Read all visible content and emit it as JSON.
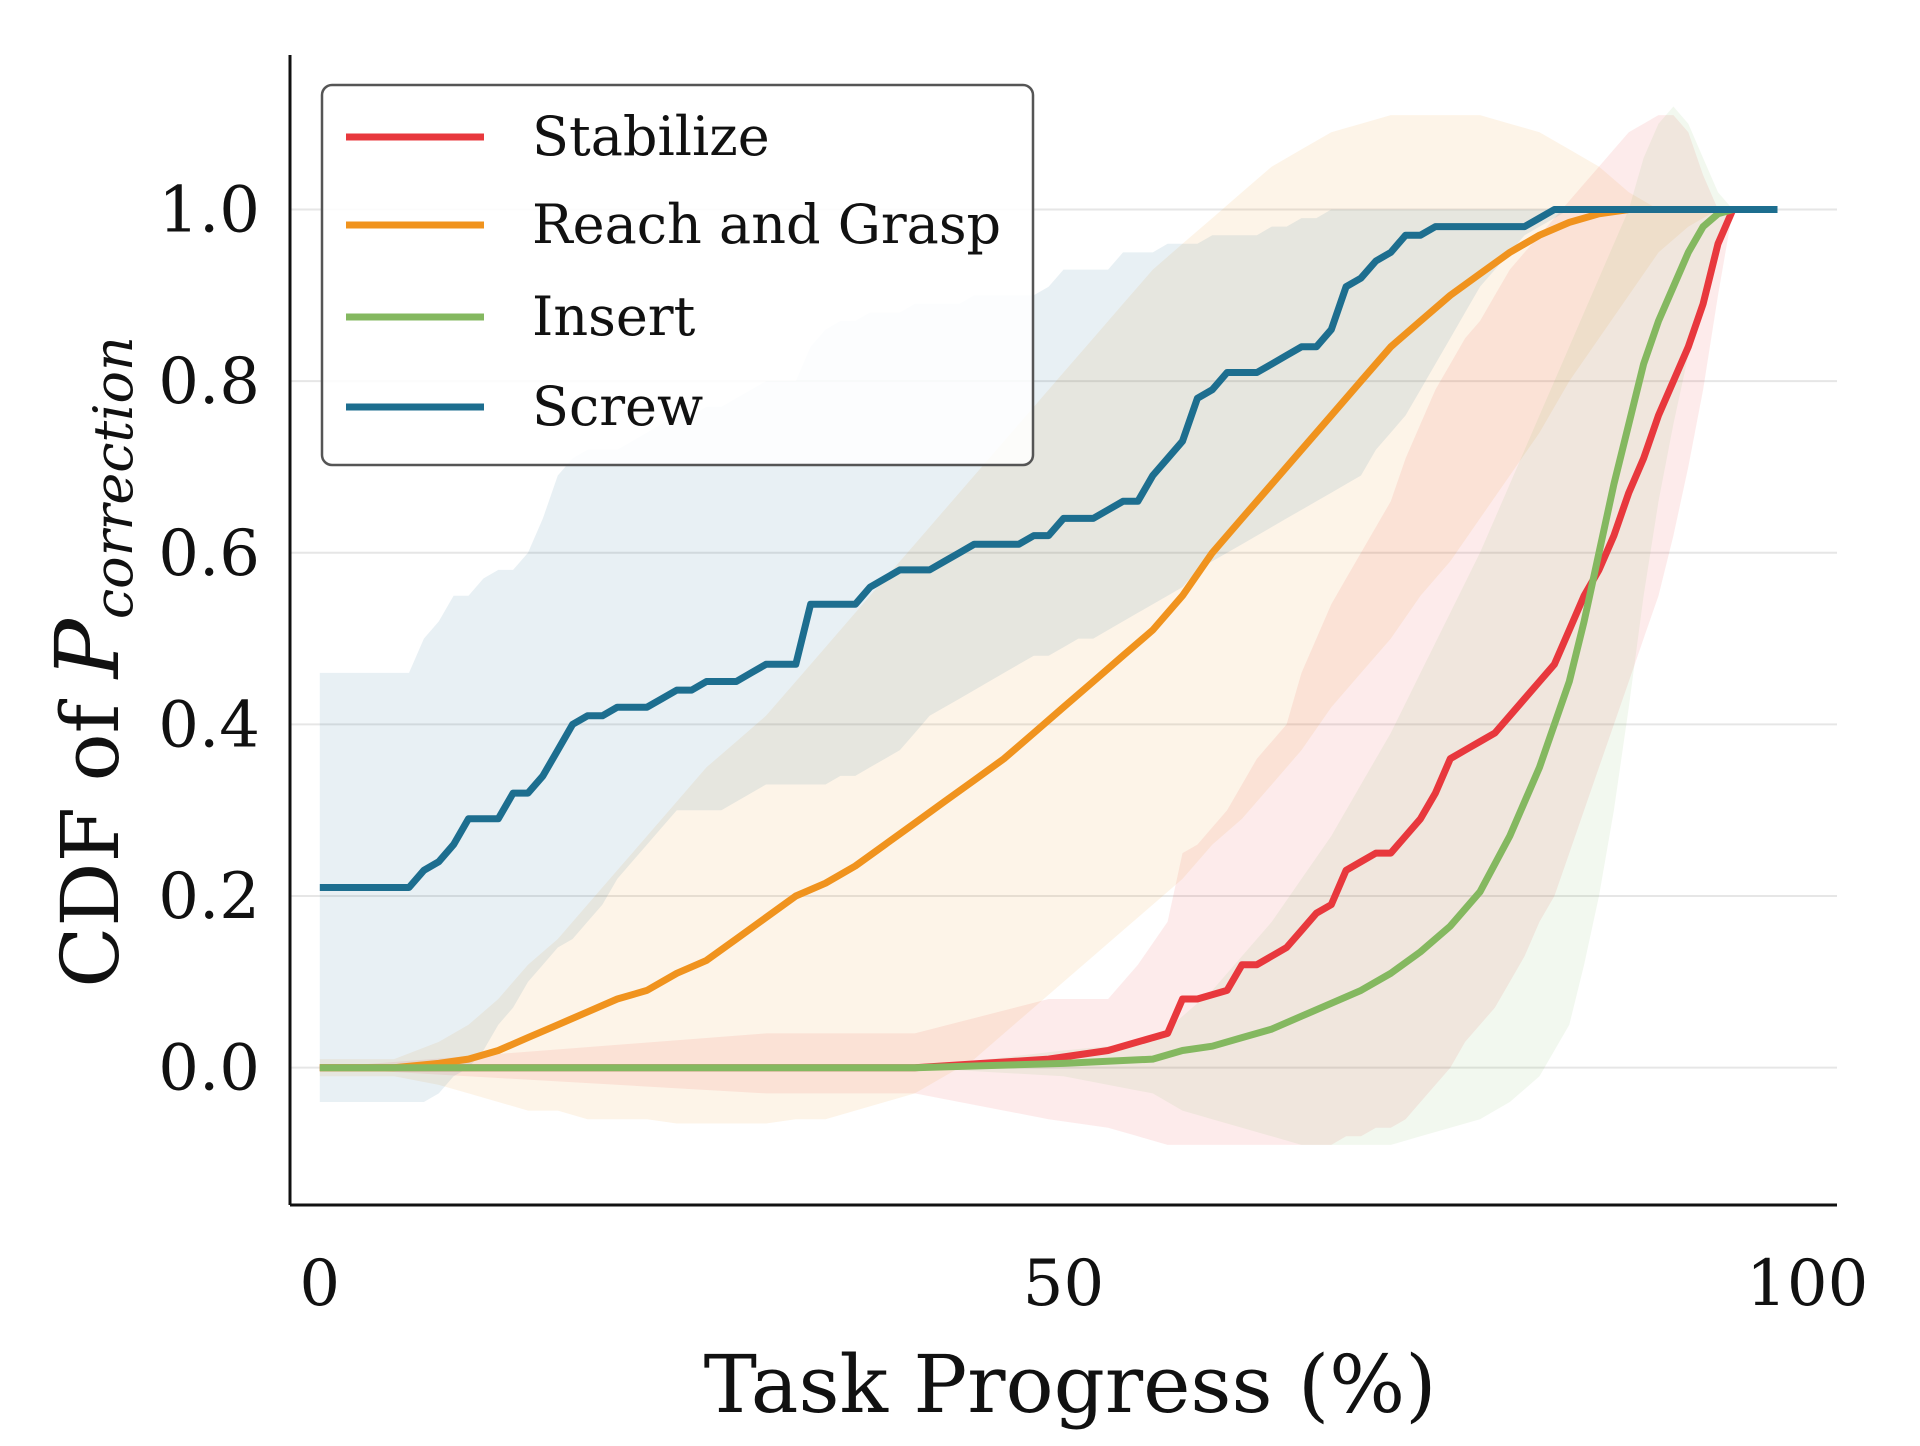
{
  "chart_data": {
    "type": "line",
    "xlabel": "Task Progress (%)",
    "ylabel_prefix": "CDF of ",
    "ylabel_symbol": "P",
    "ylabel_subscript": "correction",
    "xlim": [
      -2,
      102
    ],
    "ylim": [
      -0.16,
      1.18
    ],
    "xticks": [
      0,
      50,
      100
    ],
    "xtick_labels": [
      "0",
      "50",
      "100"
    ],
    "yticks": [
      0.0,
      0.2,
      0.4,
      0.6,
      0.8,
      1.0
    ],
    "ytick_labels": [
      "0.0",
      "0.2",
      "0.4",
      "0.6",
      "0.8",
      "1.0"
    ],
    "grid": "horizontal",
    "legend_position": "top-left",
    "series": [
      {
        "name": "Stabilize",
        "color": "#e8383d",
        "x": [
          0,
          30,
          40,
          49,
          53,
          55,
          57,
          58,
          59,
          61,
          62,
          63,
          65,
          66,
          67,
          68,
          69,
          70,
          71,
          72,
          73,
          74,
          75,
          76,
          77,
          78,
          79,
          80,
          81,
          82,
          83,
          84,
          85,
          86,
          87,
          88,
          89,
          90,
          91,
          92,
          93,
          94,
          95,
          96,
          98
        ],
        "y": [
          0.0,
          0.0,
          0.0,
          0.01,
          0.02,
          0.03,
          0.04,
          0.08,
          0.08,
          0.09,
          0.12,
          0.12,
          0.14,
          0.16,
          0.18,
          0.19,
          0.23,
          0.24,
          0.25,
          0.25,
          0.27,
          0.29,
          0.32,
          0.36,
          0.37,
          0.38,
          0.39,
          0.41,
          0.43,
          0.45,
          0.47,
          0.51,
          0.55,
          0.58,
          0.62,
          0.67,
          0.71,
          0.76,
          0.8,
          0.84,
          0.89,
          0.96,
          1.0,
          1.0,
          1.0
        ],
        "band_upper": [
          0.0,
          0.04,
          0.04,
          0.08,
          0.08,
          0.12,
          0.17,
          0.25,
          0.26,
          0.3,
          0.33,
          0.36,
          0.4,
          0.46,
          0.5,
          0.54,
          0.57,
          0.6,
          0.63,
          0.66,
          0.71,
          0.75,
          0.79,
          0.82,
          0.85,
          0.87,
          0.9,
          0.93,
          0.95,
          0.97,
          0.99,
          1.01,
          1.03,
          1.05,
          1.07,
          1.09,
          1.1,
          1.11,
          1.11,
          1.09,
          1.04,
          1.0,
          1.0,
          1.0,
          1.0
        ],
        "band_lower": [
          0.0,
          -0.03,
          -0.03,
          -0.06,
          -0.07,
          -0.08,
          -0.09,
          -0.09,
          -0.09,
          -0.09,
          -0.09,
          -0.09,
          -0.09,
          -0.09,
          -0.09,
          -0.09,
          -0.08,
          -0.08,
          -0.07,
          -0.07,
          -0.06,
          -0.04,
          -0.02,
          0.0,
          0.03,
          0.05,
          0.07,
          0.1,
          0.13,
          0.17,
          0.2,
          0.25,
          0.3,
          0.35,
          0.4,
          0.45,
          0.5,
          0.55,
          0.62,
          0.7,
          0.79,
          0.9,
          1.0,
          1.0,
          1.0
        ]
      },
      {
        "name": "Reach and Grasp",
        "color": "#f0931e",
        "x": [
          0,
          5,
          8,
          10,
          12,
          14,
          16,
          18,
          20,
          22,
          24,
          26,
          28,
          30,
          32,
          34,
          36,
          38,
          40,
          42,
          44,
          46,
          48,
          50,
          52,
          54,
          56,
          58,
          60,
          62,
          64,
          66,
          68,
          70,
          72,
          74,
          76,
          78,
          80,
          82,
          84,
          86,
          88,
          90,
          92,
          94,
          96,
          98
        ],
        "y": [
          0.0,
          0.0,
          0.005,
          0.01,
          0.02,
          0.035,
          0.05,
          0.065,
          0.08,
          0.09,
          0.11,
          0.125,
          0.15,
          0.175,
          0.2,
          0.215,
          0.235,
          0.26,
          0.285,
          0.31,
          0.335,
          0.36,
          0.39,
          0.42,
          0.45,
          0.48,
          0.51,
          0.55,
          0.6,
          0.64,
          0.68,
          0.72,
          0.76,
          0.8,
          0.84,
          0.87,
          0.9,
          0.925,
          0.95,
          0.97,
          0.985,
          0.995,
          1.0,
          1.0,
          1.0,
          1.0,
          1.0,
          1.0
        ],
        "band_upper": [
          0.01,
          0.01,
          0.03,
          0.05,
          0.08,
          0.12,
          0.15,
          0.19,
          0.23,
          0.27,
          0.31,
          0.35,
          0.38,
          0.41,
          0.45,
          0.49,
          0.53,
          0.57,
          0.61,
          0.65,
          0.69,
          0.73,
          0.77,
          0.81,
          0.85,
          0.89,
          0.93,
          0.96,
          0.99,
          1.02,
          1.05,
          1.07,
          1.09,
          1.1,
          1.11,
          1.11,
          1.11,
          1.11,
          1.1,
          1.09,
          1.07,
          1.05,
          1.02,
          1.0,
          1.0,
          1.0,
          1.0,
          1.0
        ],
        "band_lower": [
          -0.01,
          -0.01,
          -0.02,
          -0.03,
          -0.04,
          -0.05,
          -0.05,
          -0.06,
          -0.06,
          -0.06,
          -0.065,
          -0.065,
          -0.065,
          -0.065,
          -0.06,
          -0.06,
          -0.05,
          -0.04,
          -0.03,
          -0.01,
          0.01,
          0.04,
          0.07,
          0.1,
          0.13,
          0.16,
          0.19,
          0.22,
          0.26,
          0.29,
          0.33,
          0.37,
          0.42,
          0.46,
          0.5,
          0.55,
          0.59,
          0.64,
          0.69,
          0.74,
          0.8,
          0.85,
          0.9,
          0.95,
          0.98,
          1.0,
          1.0,
          1.0
        ]
      },
      {
        "name": "Insert",
        "color": "#84b860",
        "x": [
          0,
          40,
          50,
          56,
          58,
          60,
          62,
          64,
          66,
          68,
          70,
          72,
          74,
          76,
          78,
          80,
          82,
          84,
          85,
          86,
          87,
          88,
          89,
          90,
          91,
          92,
          93,
          94,
          95,
          96,
          98
        ],
        "y": [
          0.0,
          0.0,
          0.005,
          0.01,
          0.02,
          0.025,
          0.035,
          0.045,
          0.06,
          0.075,
          0.09,
          0.11,
          0.135,
          0.165,
          0.205,
          0.27,
          0.35,
          0.45,
          0.52,
          0.6,
          0.68,
          0.75,
          0.82,
          0.87,
          0.91,
          0.95,
          0.98,
          0.995,
          1.0,
          1.0,
          1.0
        ],
        "band_upper": [
          0.0,
          0.0,
          0.02,
          0.03,
          0.06,
          0.09,
          0.13,
          0.17,
          0.22,
          0.27,
          0.33,
          0.39,
          0.46,
          0.53,
          0.6,
          0.68,
          0.76,
          0.84,
          0.88,
          0.92,
          0.96,
          1.0,
          1.06,
          1.1,
          1.12,
          1.1,
          1.06,
          1.02,
          1.0,
          1.0,
          1.0
        ],
        "band_lower": [
          0.0,
          0.0,
          -0.01,
          -0.03,
          -0.05,
          -0.06,
          -0.07,
          -0.08,
          -0.09,
          -0.09,
          -0.09,
          -0.09,
          -0.08,
          -0.07,
          -0.06,
          -0.04,
          -0.01,
          0.05,
          0.12,
          0.2,
          0.3,
          0.42,
          0.55,
          0.66,
          0.75,
          0.83,
          0.9,
          0.96,
          1.0,
          1.0,
          1.0
        ]
      },
      {
        "name": "Screw",
        "color": "#1d6e8f",
        "x": [
          0,
          6,
          7,
          8,
          9,
          10,
          11,
          12,
          13,
          14,
          15,
          16,
          17,
          18,
          19,
          20,
          21,
          22,
          23,
          24,
          25,
          26,
          27,
          28,
          29,
          30,
          31,
          32,
          33,
          34,
          35,
          36,
          37,
          38,
          39,
          40,
          41,
          42,
          43,
          44,
          45,
          46,
          47,
          48,
          49,
          50,
          51,
          52,
          53,
          54,
          55,
          56,
          57,
          58,
          59,
          60,
          61,
          62,
          63,
          64,
          65,
          66,
          67,
          68,
          69,
          70,
          71,
          72,
          73,
          74,
          75,
          76,
          77,
          78,
          79,
          80,
          81,
          82,
          83,
          84,
          85,
          86,
          87,
          88,
          89,
          90,
          91,
          92,
          93,
          94,
          95,
          96,
          97,
          98
        ],
        "y": [
          0.21,
          0.21,
          0.23,
          0.24,
          0.26,
          0.29,
          0.29,
          0.29,
          0.32,
          0.32,
          0.34,
          0.37,
          0.4,
          0.41,
          0.41,
          0.42,
          0.42,
          0.42,
          0.43,
          0.44,
          0.44,
          0.45,
          0.45,
          0.45,
          0.46,
          0.47,
          0.47,
          0.47,
          0.54,
          0.54,
          0.54,
          0.54,
          0.56,
          0.57,
          0.58,
          0.58,
          0.58,
          0.59,
          0.6,
          0.61,
          0.61,
          0.61,
          0.61,
          0.62,
          0.62,
          0.64,
          0.64,
          0.64,
          0.65,
          0.66,
          0.66,
          0.69,
          0.71,
          0.73,
          0.78,
          0.79,
          0.81,
          0.81,
          0.81,
          0.82,
          0.83,
          0.84,
          0.84,
          0.86,
          0.91,
          0.92,
          0.94,
          0.95,
          0.97,
          0.97,
          0.98,
          0.98,
          0.98,
          0.98,
          0.98,
          0.98,
          0.98,
          0.99,
          1.0,
          1.0,
          1.0,
          1.0,
          1.0,
          1.0,
          1.0,
          1.0,
          1.0,
          1.0,
          1.0,
          1.0,
          1.0,
          1.0,
          1.0,
          1.0
        ],
        "band_upper": [
          0.46,
          0.46,
          0.5,
          0.52,
          0.55,
          0.55,
          0.57,
          0.58,
          0.58,
          0.6,
          0.64,
          0.69,
          0.71,
          0.72,
          0.72,
          0.72,
          0.73,
          0.74,
          0.75,
          0.76,
          0.76,
          0.77,
          0.77,
          0.78,
          0.79,
          0.8,
          0.8,
          0.8,
          0.84,
          0.86,
          0.87,
          0.87,
          0.88,
          0.88,
          0.88,
          0.89,
          0.89,
          0.89,
          0.89,
          0.9,
          0.9,
          0.9,
          0.9,
          0.9,
          0.91,
          0.93,
          0.93,
          0.93,
          0.93,
          0.95,
          0.95,
          0.95,
          0.96,
          0.96,
          0.96,
          0.97,
          0.97,
          0.97,
          0.97,
          0.98,
          0.98,
          0.99,
          0.99,
          1.0,
          1.0,
          1.0,
          1.0,
          1.0,
          1.0,
          1.0,
          1.0,
          1.0,
          1.0,
          1.0,
          1.0,
          1.0,
          1.0,
          1.0,
          1.0,
          1.0,
          1.0,
          1.0,
          1.0,
          1.0,
          1.0,
          1.0,
          1.0,
          1.0,
          1.0,
          1.0,
          1.0,
          1.0,
          1.0,
          1.0
        ],
        "band_lower": [
          -0.04,
          -0.04,
          -0.04,
          -0.03,
          -0.01,
          0.0,
          0.02,
          0.05,
          0.07,
          0.1,
          0.12,
          0.14,
          0.15,
          0.17,
          0.19,
          0.22,
          0.24,
          0.26,
          0.28,
          0.3,
          0.3,
          0.3,
          0.3,
          0.31,
          0.32,
          0.33,
          0.33,
          0.33,
          0.33,
          0.33,
          0.34,
          0.34,
          0.35,
          0.36,
          0.37,
          0.39,
          0.41,
          0.42,
          0.43,
          0.44,
          0.45,
          0.46,
          0.47,
          0.48,
          0.48,
          0.49,
          0.5,
          0.5,
          0.51,
          0.52,
          0.53,
          0.54,
          0.55,
          0.56,
          0.58,
          0.59,
          0.6,
          0.61,
          0.62,
          0.63,
          0.64,
          0.65,
          0.66,
          0.67,
          0.68,
          0.69,
          0.72,
          0.74,
          0.76,
          0.79,
          0.82,
          0.85,
          0.88,
          0.91,
          0.93,
          0.95,
          0.97,
          0.98,
          0.99,
          1.0,
          1.0,
          1.0,
          1.0,
          1.0,
          1.0,
          1.0,
          1.0,
          1.0,
          1.0,
          1.0,
          1.0,
          1.0,
          1.0,
          1.0
        ]
      }
    ]
  }
}
